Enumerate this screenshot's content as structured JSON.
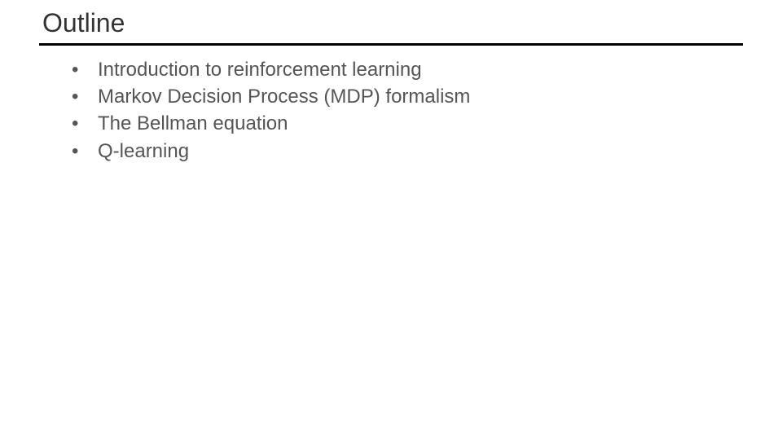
{
  "slide": {
    "title": "Outline",
    "title_fontsize": 32,
    "title_color": "#333333",
    "divider_color": "#000000",
    "divider_thickness": 3,
    "background_color": "#ffffff",
    "bullet_marker": "•",
    "bullet_fontsize": 24,
    "bullet_color": "#555555",
    "items": [
      {
        "text": "Introduction to reinforcement learning"
      },
      {
        "text": "Markov Decision Process (MDP) formalism"
      },
      {
        "text": "The Bellman equation"
      },
      {
        "text": "Q-learning"
      }
    ]
  }
}
